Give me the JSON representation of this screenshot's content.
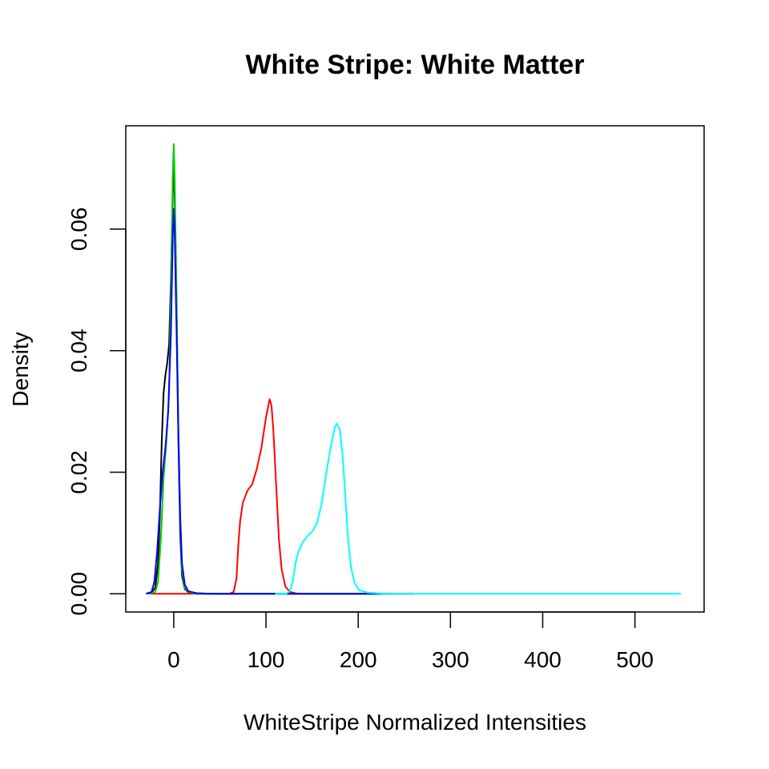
{
  "chart_data": {
    "type": "line",
    "title": "White Stripe: White Matter",
    "xlabel": "WhiteStripe Normalized Intensities",
    "ylabel": "Density",
    "xlim": [
      -52,
      575
    ],
    "ylim": [
      -0.003,
      0.077
    ],
    "xticks": [
      0,
      100,
      200,
      300,
      400,
      500
    ],
    "xtick_labels": [
      "0",
      "100",
      "200",
      "300",
      "400",
      "500"
    ],
    "yticks": [
      0.0,
      0.02,
      0.04,
      0.06
    ],
    "ytick_labels": [
      "0.00",
      "0.02",
      "0.04",
      "0.06"
    ],
    "grid": false,
    "legend": "none",
    "series": [
      {
        "color": "#000000",
        "points": [
          [
            -28,
            0
          ],
          [
            -24,
            0.0002
          ],
          [
            -20,
            0.001
          ],
          [
            -17,
            0.005
          ],
          [
            -15,
            0.013
          ],
          [
            -13,
            0.025
          ],
          [
            -11,
            0.033
          ],
          [
            -9,
            0.036
          ],
          [
            -7,
            0.038
          ],
          [
            -5,
            0.041
          ],
          [
            -3,
            0.052
          ],
          [
            -1,
            0.066
          ],
          [
            0,
            0.0705
          ],
          [
            1,
            0.066
          ],
          [
            3,
            0.048
          ],
          [
            5,
            0.026
          ],
          [
            7,
            0.01
          ],
          [
            9,
            0.003
          ],
          [
            12,
            0.0008
          ],
          [
            16,
            0.0002
          ],
          [
            25,
            0
          ],
          [
            60,
            0
          ],
          [
            220,
            0
          ]
        ]
      },
      {
        "color": "#ff0000",
        "points": [
          [
            -25,
            0
          ],
          [
            60,
            0
          ],
          [
            65,
            0.0003
          ],
          [
            68,
            0.0025
          ],
          [
            70,
            0.008
          ],
          [
            72,
            0.012
          ],
          [
            75,
            0.015
          ],
          [
            80,
            0.017
          ],
          [
            85,
            0.018
          ],
          [
            90,
            0.0205
          ],
          [
            95,
            0.024
          ],
          [
            100,
            0.029
          ],
          [
            104,
            0.032
          ],
          [
            106,
            0.031
          ],
          [
            108,
            0.027
          ],
          [
            111,
            0.018
          ],
          [
            114,
            0.009
          ],
          [
            117,
            0.004
          ],
          [
            121,
            0.0012
          ],
          [
            126,
            0.0003
          ],
          [
            135,
            0
          ],
          [
            230,
            0
          ]
        ]
      },
      {
        "color": "#00cd00",
        "points": [
          [
            -26,
            0
          ],
          [
            -20,
            0.0003
          ],
          [
            -17,
            0.002
          ],
          [
            -14,
            0.009
          ],
          [
            -11,
            0.019
          ],
          [
            -8,
            0.025
          ],
          [
            -5,
            0.033
          ],
          [
            -3,
            0.05
          ],
          [
            -1,
            0.069
          ],
          [
            0,
            0.074
          ],
          [
            1,
            0.069
          ],
          [
            3,
            0.05
          ],
          [
            5,
            0.028
          ],
          [
            7,
            0.012
          ],
          [
            9,
            0.004
          ],
          [
            12,
            0.001
          ],
          [
            16,
            0.0003
          ],
          [
            25,
            0
          ],
          [
            60,
            0
          ],
          [
            230,
            0
          ]
        ]
      },
      {
        "color": "#0000ff",
        "points": [
          [
            -30,
            0
          ],
          [
            -24,
            0.0003
          ],
          [
            -21,
            0.002
          ],
          [
            -18,
            0.007
          ],
          [
            -15,
            0.014
          ],
          [
            -12,
            0.02
          ],
          [
            -9,
            0.024
          ],
          [
            -6,
            0.03
          ],
          [
            -3,
            0.043
          ],
          [
            -1,
            0.059
          ],
          [
            0,
            0.0633
          ],
          [
            1,
            0.06
          ],
          [
            3,
            0.044
          ],
          [
            5,
            0.027
          ],
          [
            7,
            0.013
          ],
          [
            9,
            0.005
          ],
          [
            12,
            0.0015
          ],
          [
            16,
            0.0004
          ],
          [
            25,
            0.0001
          ],
          [
            40,
            0
          ],
          [
            260,
            0
          ]
        ]
      },
      {
        "color": "#00ffff",
        "points": [
          [
            110,
            0
          ],
          [
            122,
            0
          ],
          [
            126,
            0.0005
          ],
          [
            129,
            0.002
          ],
          [
            132,
            0.005
          ],
          [
            135,
            0.0068
          ],
          [
            140,
            0.0085
          ],
          [
            145,
            0.0095
          ],
          [
            150,
            0.0102
          ],
          [
            155,
            0.0115
          ],
          [
            160,
            0.0145
          ],
          [
            165,
            0.0195
          ],
          [
            170,
            0.024
          ],
          [
            175,
            0.0275
          ],
          [
            177,
            0.028
          ],
          [
            180,
            0.027
          ],
          [
            183,
            0.023
          ],
          [
            186,
            0.016
          ],
          [
            189,
            0.009
          ],
          [
            192,
            0.0045
          ],
          [
            196,
            0.0018
          ],
          [
            201,
            0.0006
          ],
          [
            210,
            0.0002
          ],
          [
            230,
            0
          ],
          [
            550,
            0
          ]
        ]
      }
    ]
  }
}
